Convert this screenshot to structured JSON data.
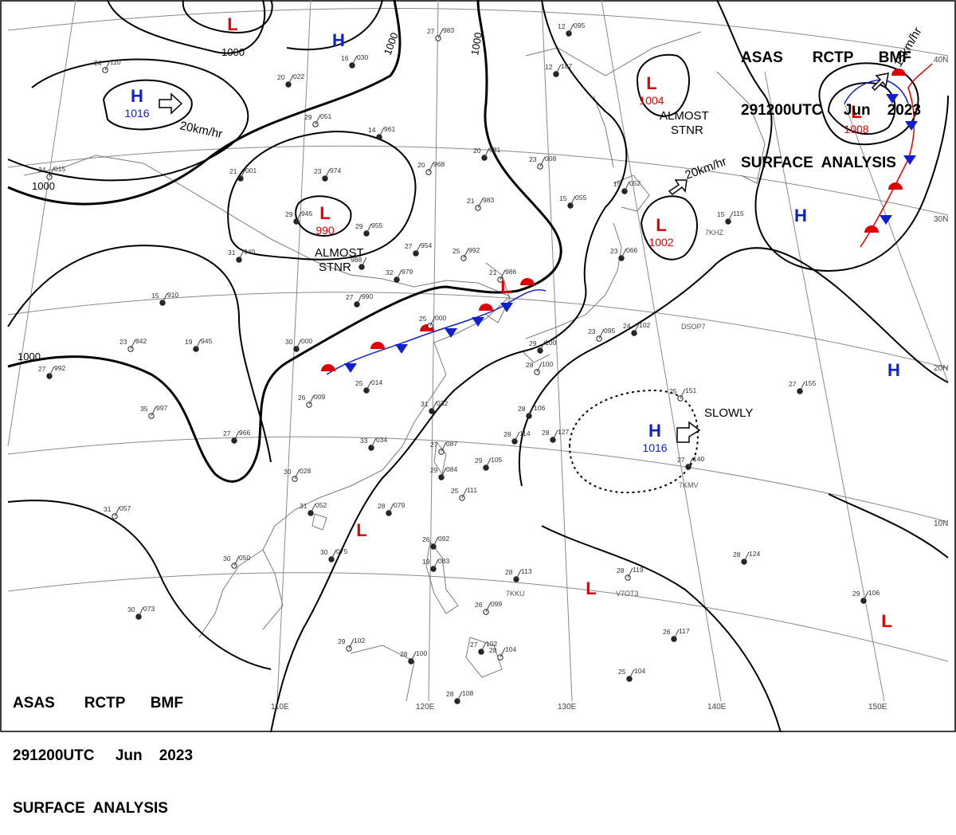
{
  "header": {
    "line1": "ASAS       RCTP      BMF",
    "line2": "291200UTC     Jun    2023",
    "line3": "SURFACE  ANALYSIS"
  },
  "longitude_labels": [
    "110E",
    "120E",
    "130E",
    "140E",
    "150E"
  ],
  "latitude_labels": [
    "40N",
    "30N",
    "20N",
    "10N"
  ],
  "isobar_labels": [
    "1000",
    "1000",
    "1000",
    "1000",
    "1000"
  ],
  "pressure_centers": [
    {
      "kind": "L",
      "value": "",
      "color": "#e00000"
    },
    {
      "kind": "H",
      "value": "",
      "color": "#1020d0"
    },
    {
      "kind": "H",
      "value": "1016",
      "color": "#1020d0"
    },
    {
      "kind": "L",
      "value": "990",
      "color": "#e00000"
    },
    {
      "kind": "L",
      "value": "1004",
      "color": "#e00000"
    },
    {
      "kind": "L",
      "value": "1002",
      "color": "#e00000"
    },
    {
      "kind": "L",
      "value": "1008",
      "color": "#e00000"
    },
    {
      "kind": "H",
      "value": "",
      "color": "#1020d0"
    },
    {
      "kind": "H",
      "value": "",
      "color": "#1020d0"
    },
    {
      "kind": "H",
      "value": "1016",
      "color": "#1020d0"
    },
    {
      "kind": "L",
      "value": "",
      "color": "#e00000"
    },
    {
      "kind": "L",
      "value": "",
      "color": "#e00000"
    },
    {
      "kind": "L",
      "value": "",
      "color": "#e00000"
    },
    {
      "kind": "L",
      "value": "",
      "color": "#e00000"
    }
  ],
  "motion_notes": [
    "20km/hr",
    "20km/hr",
    "15km/hr",
    "ALMOST",
    "STNR",
    "ALMOST",
    "STNR",
    "SLOWLY"
  ],
  "station_plots": [
    {
      "t": "24",
      "p": "110"
    },
    {
      "t": "20",
      "p": "022"
    },
    {
      "t": "16",
      "p": "030"
    },
    {
      "t": "27",
      "p": "983"
    },
    {
      "t": "12",
      "p": "095"
    },
    {
      "t": "12",
      "p": "107"
    },
    {
      "t": "29",
      "p": "051"
    },
    {
      "t": "14",
      "p": "961"
    },
    {
      "t": "20",
      "p": "981"
    },
    {
      "t": "20",
      "p": "968"
    },
    {
      "t": "23",
      "p": "974"
    },
    {
      "t": "21",
      "p": "001"
    },
    {
      "t": "24",
      "p": "015"
    },
    {
      "t": "29",
      "p": "945"
    },
    {
      "t": "29",
      "p": "955"
    },
    {
      "t": "21",
      "p": "983"
    },
    {
      "t": "15",
      "p": "055"
    },
    {
      "t": "15",
      "p": "052"
    },
    {
      "t": "23",
      "p": "008"
    },
    {
      "t": "31",
      "p": "940"
    },
    {
      "t": "27",
      "p": "954"
    },
    {
      "t": "25",
      "p": "992"
    },
    {
      "t": "988",
      "p": ""
    },
    {
      "t": "32",
      "p": "979"
    },
    {
      "t": "21",
      "p": "986"
    },
    {
      "t": "15",
      "p": "910"
    },
    {
      "t": "27",
      "p": "990"
    },
    {
      "t": "23",
      "p": "842"
    },
    {
      "t": "19",
      "p": "945"
    },
    {
      "t": "30",
      "p": "000"
    },
    {
      "t": "25",
      "p": "000"
    },
    {
      "t": "23",
      "p": "066"
    },
    {
      "t": "15",
      "p": "115"
    },
    {
      "t": "23",
      "p": "095"
    },
    {
      "t": "24",
      "p": "102"
    },
    {
      "t": "29",
      "p": "100"
    },
    {
      "t": "28",
      "p": "100"
    },
    {
      "t": "27",
      "p": "992"
    },
    {
      "t": "25",
      "p": "014"
    },
    {
      "t": "26",
      "p": "009"
    },
    {
      "t": "31",
      "p": "032"
    },
    {
      "t": "28",
      "p": "106"
    },
    {
      "t": "35",
      "p": "997"
    },
    {
      "t": "27",
      "p": "966"
    },
    {
      "t": "33",
      "p": "034"
    },
    {
      "t": "27",
      "p": "087"
    },
    {
      "t": "28",
      "p": "114"
    },
    {
      "t": "28",
      "p": "127"
    },
    {
      "t": "25",
      "p": "151"
    },
    {
      "t": "27",
      "p": "155"
    },
    {
      "t": "27",
      "p": "140"
    },
    {
      "t": "30",
      "p": "028"
    },
    {
      "t": "29",
      "p": "084"
    },
    {
      "t": "29",
      "p": "105"
    },
    {
      "t": "25",
      "p": "111"
    },
    {
      "t": "31",
      "p": "052"
    },
    {
      "t": "28",
      "p": "079"
    },
    {
      "t": "31",
      "p": "057"
    },
    {
      "t": "26",
      "p": "092"
    },
    {
      "t": "30",
      "p": "075"
    },
    {
      "t": "30",
      "p": "050"
    },
    {
      "t": "19",
      "p": "083"
    },
    {
      "t": "28",
      "p": "113"
    },
    {
      "t": "28",
      "p": "119"
    },
    {
      "t": "28",
      "p": "124"
    },
    {
      "t": "30",
      "p": "073"
    },
    {
      "t": "26",
      "p": "099"
    },
    {
      "t": "29",
      "p": "106"
    },
    {
      "t": "26",
      "p": "117"
    },
    {
      "t": "29",
      "p": "102"
    },
    {
      "t": "28",
      "p": "100"
    },
    {
      "t": "27",
      "p": "102"
    },
    {
      "t": "28",
      "p": "104"
    },
    {
      "t": "25",
      "p": "104"
    },
    {
      "t": "28",
      "p": "108"
    }
  ],
  "station_codes": [
    "7KHZ",
    "7KMV",
    "7KKU",
    "V7OT3",
    "DSOP7"
  ],
  "colors": {
    "high": "#1020d0",
    "low": "#e00000",
    "warm_front": "#e00000",
    "cold_front": "#1020d0"
  }
}
